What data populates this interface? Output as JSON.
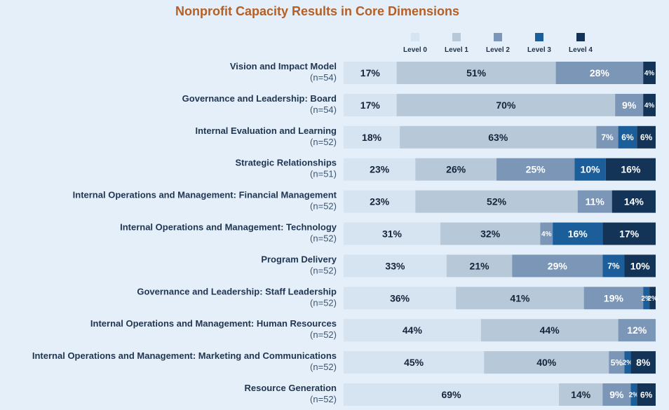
{
  "chart_data": {
    "type": "bar",
    "orientation": "horizontal",
    "stacked": true,
    "title": "Nonprofit Capacity Results in Core Dimensions",
    "legend_position": "top-right",
    "series": [
      {
        "name": "Level 0",
        "color": "#d6e3f0"
      },
      {
        "name": "Level 1",
        "color": "#b7c8d9"
      },
      {
        "name": "Level 2",
        "color": "#7b96b6"
      },
      {
        "name": "Level 3",
        "color": "#1c5e99"
      },
      {
        "name": "Level 4",
        "color": "#133457"
      }
    ],
    "categories": [
      {
        "name": "Vision and Impact Model",
        "n": "(n=54)",
        "values": [
          17,
          51,
          28,
          0,
          4
        ],
        "labels": [
          "17%",
          "51%",
          "28%",
          "",
          "4%"
        ]
      },
      {
        "name": "Governance and Leadership: Board",
        "n": "(n=54)",
        "values": [
          17,
          70,
          9,
          0,
          4
        ],
        "labels": [
          "17%",
          "70%",
          "9%",
          "",
          "4%"
        ]
      },
      {
        "name": "Internal Evaluation and Learning",
        "n": "(n=52)",
        "values": [
          18,
          63,
          7,
          6,
          6
        ],
        "labels": [
          "18%",
          "63%",
          "7%",
          "6%",
          "6%"
        ]
      },
      {
        "name": "Strategic Relationships",
        "n": "(n=51)",
        "values": [
          23,
          26,
          25,
          10,
          16
        ],
        "labels": [
          "23%",
          "26%",
          "25%",
          "10%",
          "16%"
        ]
      },
      {
        "name": "Internal Operations and Management: Financial Management",
        "n": "(n=52)",
        "values": [
          23,
          52,
          11,
          0,
          14
        ],
        "labels": [
          "23%",
          "52%",
          "11%",
          "",
          "14%"
        ]
      },
      {
        "name": "Internal Operations and Management: Technology",
        "n": "(n=52)",
        "values": [
          31,
          32,
          4,
          16,
          17
        ],
        "labels": [
          "31%",
          "32%",
          "4%",
          "16%",
          "17%"
        ]
      },
      {
        "name": "Program Delivery",
        "n": "(n=52)",
        "values": [
          33,
          21,
          29,
          7,
          10
        ],
        "labels": [
          "33%",
          "21%",
          "29%",
          "7%",
          "10%"
        ]
      },
      {
        "name": "Governance and Leadership: Staff Leadership",
        "n": "(n=52)",
        "values": [
          36,
          41,
          19,
          2,
          2
        ],
        "labels": [
          "36%",
          "41%",
          "19%",
          "2%",
          "2%"
        ]
      },
      {
        "name": "Internal Operations and Management: Human Resources",
        "n": "(n=52)",
        "values": [
          44,
          44,
          12,
          0,
          0
        ],
        "labels": [
          "44%",
          "44%",
          "12%",
          "",
          ""
        ]
      },
      {
        "name": "Internal Operations and Management: Marketing and Communications",
        "n": "(n=52)",
        "values": [
          45,
          40,
          5,
          2,
          8
        ],
        "labels": [
          "45%",
          "40%",
          "5%",
          "2%",
          "8%"
        ]
      },
      {
        "name": "Resource Generation",
        "n": "(n=52)",
        "values": [
          69,
          14,
          9,
          2,
          6
        ],
        "labels": [
          "69%",
          "14%",
          "9%",
          "2%",
          "6%"
        ]
      }
    ],
    "xlim": [
      0,
      100
    ]
  }
}
